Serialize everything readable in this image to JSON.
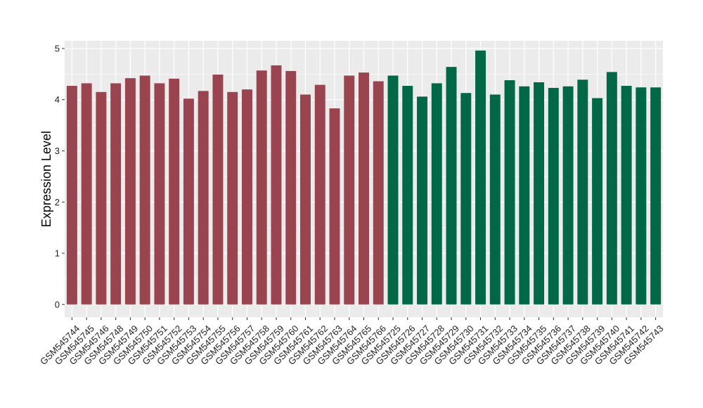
{
  "chart_data": {
    "type": "bar",
    "title": "",
    "xlabel": "",
    "ylabel": "Expression Level",
    "ylim": [
      -0.25,
      5.15
    ],
    "yticks": [
      0,
      1,
      2,
      3,
      4,
      5
    ],
    "grid": true,
    "legend": "none",
    "colors": {
      "panel": "#ebebeb",
      "grid": "#ffffff",
      "group_a": "#9a4450",
      "group_b": "#006846"
    },
    "categories": [
      "GSM545744",
      "GSM545745",
      "GSM545746",
      "GSM545748",
      "GSM545749",
      "GSM545750",
      "GSM545751",
      "GSM545752",
      "GSM545753",
      "GSM545754",
      "GSM545755",
      "GSM545756",
      "GSM545757",
      "GSM545758",
      "GSM545759",
      "GSM545760",
      "GSM545761",
      "GSM545762",
      "GSM545763",
      "GSM545764",
      "GSM545765",
      "GSM545766",
      "GSM545725",
      "GSM545726",
      "GSM545727",
      "GSM545728",
      "GSM545729",
      "GSM545730",
      "GSM545731",
      "GSM545732",
      "GSM545733",
      "GSM545734",
      "GSM545735",
      "GSM545736",
      "GSM545737",
      "GSM545738",
      "GSM545739",
      "GSM545740",
      "GSM545741",
      "GSM545742",
      "GSM545743"
    ],
    "values": [
      4.27,
      4.32,
      4.15,
      4.32,
      4.42,
      4.47,
      4.32,
      4.41,
      4.02,
      4.17,
      4.49,
      4.15,
      4.2,
      4.57,
      4.67,
      4.56,
      4.1,
      4.29,
      3.83,
      4.47,
      4.53,
      4.36,
      4.47,
      4.27,
      4.06,
      4.32,
      4.64,
      4.13,
      4.96,
      4.1,
      4.38,
      4.26,
      4.34,
      4.23,
      4.26,
      4.39,
      4.03,
      4.54,
      4.27,
      4.24,
      4.24
    ],
    "groups": [
      "a",
      "a",
      "a",
      "a",
      "a",
      "a",
      "a",
      "a",
      "a",
      "a",
      "a",
      "a",
      "a",
      "a",
      "a",
      "a",
      "a",
      "a",
      "a",
      "a",
      "a",
      "a",
      "b",
      "b",
      "b",
      "b",
      "b",
      "b",
      "b",
      "b",
      "b",
      "b",
      "b",
      "b",
      "b",
      "b",
      "b",
      "b",
      "b",
      "b",
      "b"
    ]
  }
}
